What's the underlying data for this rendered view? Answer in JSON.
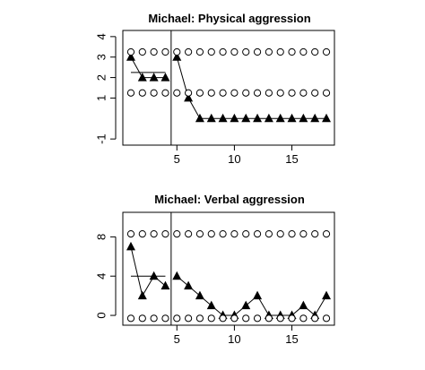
{
  "chart_data": [
    {
      "type": "line",
      "title": "Michael: Physical aggression",
      "xlabel": "",
      "ylabel": "",
      "xlim": [
        0.3,
        18.7
      ],
      "ylim": [
        -1.3,
        4.3
      ],
      "xticks": [
        5,
        10,
        15
      ],
      "yticks": [
        -1,
        1,
        2,
        3,
        4
      ],
      "xtick_labels": [
        "5",
        "10",
        "15"
      ],
      "ytick_labels": [
        "-1",
        "1",
        "2",
        "3",
        "4"
      ],
      "phase_change_after_x": 4.5,
      "series": [
        {
          "marker": "filled-triangle",
          "x": [
            1,
            2,
            3,
            4,
            5,
            6,
            7,
            8,
            9,
            10,
            11,
            12,
            13,
            14,
            15,
            16,
            17,
            18
          ],
          "y": [
            3,
            2,
            2,
            2,
            3,
            1,
            0,
            0,
            0,
            0,
            0,
            0,
            0,
            0,
            0,
            0,
            0,
            0
          ]
        },
        {
          "marker": "open-circle",
          "x": [
            1,
            2,
            3,
            4,
            5,
            6,
            7,
            8,
            9,
            10,
            11,
            12,
            13,
            14,
            15,
            16,
            17,
            18
          ],
          "y": [
            3.25,
            3.25,
            3.25,
            3.25,
            3.25,
            3.25,
            3.25,
            3.25,
            3.25,
            3.25,
            3.25,
            3.25,
            3.25,
            3.25,
            3.25,
            3.25,
            3.25,
            3.25
          ]
        },
        {
          "marker": "open-circle",
          "x": [
            1,
            2,
            3,
            4,
            5,
            6,
            7,
            8,
            9,
            10,
            11,
            12,
            13,
            14,
            15,
            16,
            17,
            18
          ],
          "y": [
            1.25,
            1.25,
            1.25,
            1.25,
            1.25,
            1.25,
            1.25,
            1.25,
            1.25,
            1.25,
            1.25,
            1.25,
            1.25,
            1.25,
            1.25,
            1.25,
            1.25,
            1.25
          ]
        }
      ],
      "baseline_mean": {
        "x": [
          1,
          4
        ],
        "y": 2.25
      }
    },
    {
      "type": "line",
      "title": "Michael: Verbal aggression",
      "xlabel": "",
      "ylabel": "",
      "xlim": [
        0.3,
        18.7
      ],
      "ylim": [
        -1,
        10.5
      ],
      "xticks": [
        5,
        10,
        15
      ],
      "yticks": [
        0,
        4,
        8
      ],
      "xtick_labels": [
        "5",
        "10",
        "15"
      ],
      "ytick_labels": [
        "0",
        "4",
        "8"
      ],
      "phase_change_after_x": 4.5,
      "series": [
        {
          "marker": "filled-triangle",
          "x": [
            1,
            2,
            3,
            4,
            5,
            6,
            7,
            8,
            9,
            10,
            11,
            12,
            13,
            14,
            15,
            16,
            17,
            18
          ],
          "y": [
            7,
            2,
            4,
            3,
            4,
            3,
            2,
            1,
            0,
            0,
            1,
            2,
            0,
            0,
            0,
            1,
            0,
            2
          ]
        },
        {
          "marker": "open-circle",
          "x": [
            1,
            2,
            3,
            4,
            5,
            6,
            7,
            8,
            9,
            10,
            11,
            12,
            13,
            14,
            15,
            16,
            17,
            18
          ],
          "y": [
            8.3,
            8.3,
            8.3,
            8.3,
            8.3,
            8.3,
            8.3,
            8.3,
            8.3,
            8.3,
            8.3,
            8.3,
            8.3,
            8.3,
            8.3,
            8.3,
            8.3,
            8.3
          ]
        },
        {
          "marker": "open-circle",
          "x": [
            1,
            2,
            3,
            4,
            5,
            6,
            7,
            8,
            9,
            10,
            11,
            12,
            13,
            14,
            15,
            16,
            17,
            18
          ],
          "y": [
            -0.3,
            -0.3,
            -0.3,
            -0.3,
            -0.3,
            -0.3,
            -0.3,
            -0.3,
            -0.3,
            -0.3,
            -0.3,
            -0.3,
            -0.3,
            -0.3,
            -0.3,
            -0.3,
            -0.3,
            -0.3
          ]
        }
      ],
      "baseline_mean": {
        "x": [
          1,
          4
        ],
        "y": 4
      }
    }
  ],
  "colors": {
    "ink": "#000000",
    "background": "#ffffff"
  }
}
